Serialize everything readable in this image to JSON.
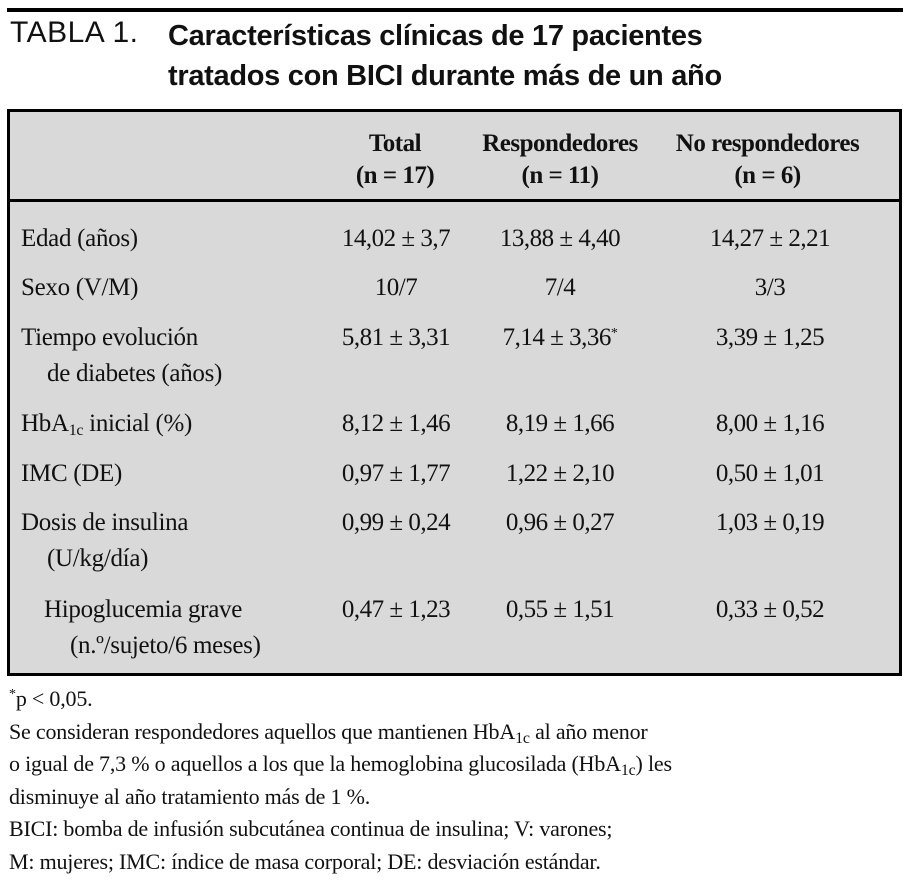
{
  "title": {
    "label": "TABLA 1.",
    "line1": "Características clínicas de 17 pacientes",
    "line2": "tratados con BICI durante más de un año"
  },
  "header": {
    "total": {
      "name": "Total",
      "n": "(n = 17)"
    },
    "responders": {
      "name": "Respondedores",
      "n": "(n = 11)"
    },
    "non_responders": {
      "name": "No respondedores",
      "n": "(n = 6)"
    }
  },
  "rows": [
    {
      "label": "Edad (años)",
      "label2": "",
      "total": "14,02 ± 3,7",
      "responders": "13,88 ± 4,40",
      "responders_mark": "",
      "non_responders": "14,27 ± 2,21"
    },
    {
      "label": "Sexo (V/M)",
      "label2": "",
      "total": "10/7",
      "responders": "7/4",
      "responders_mark": "",
      "non_responders": "3/3"
    },
    {
      "label": "Tiempo evolución",
      "label2": "de diabetes (años)",
      "total": "5,81 ± 3,31",
      "responders": "7,14 ± 3,36",
      "responders_mark": "*",
      "non_responders": "3,39 ± 1,25"
    },
    {
      "label_pre": "HbA",
      "label_sub": "1c",
      "label_post": " inicial (%)",
      "total": "8,12 ± 1,46",
      "responders": "8,19 ± 1,66",
      "responders_mark": "",
      "non_responders": "8,00 ± 1,16"
    },
    {
      "label": "IMC (DE)",
      "label2": "",
      "total": "0,97 ± 1,77",
      "responders": "1,22 ± 2,10",
      "responders_mark": "",
      "non_responders": "0,50 ± 1,01"
    },
    {
      "label": "Dosis de insulina",
      "label2": "(U/kg/día)",
      "total": "0,99 ± 0,24",
      "responders": "0,96 ± 0,27",
      "responders_mark": "",
      "non_responders": "1,03 ± 0,19"
    },
    {
      "label": "Hipoglucemia grave",
      "label2": "(n.º/sujeto/6 meses)",
      "total": "0,47 ± 1,23",
      "responders": "0,55 ± 1,51",
      "responders_mark": "",
      "non_responders": "0,33 ± 0,52"
    }
  ],
  "notes": {
    "sig_mark": "*",
    "sig": "p < 0,05.",
    "line2_a": "Se consideran respondedores aquellos que mantienen HbA",
    "line2_sub": "1c",
    "line2_b": " al año menor",
    "line3_a": "o igual de 7,3 % o aquellos a los que la hemoglobina glucosilada (HbA",
    "line3_sub": "1c",
    "line3_b": ") les",
    "line4": "disminuye al año tratamiento más de 1 %.",
    "line5": "BICI: bomba de infusión subcutánea continua de insulina; V: varones;",
    "line6": "M: mujeres; IMC: índice de masa corporal; DE: desviación estándar."
  }
}
